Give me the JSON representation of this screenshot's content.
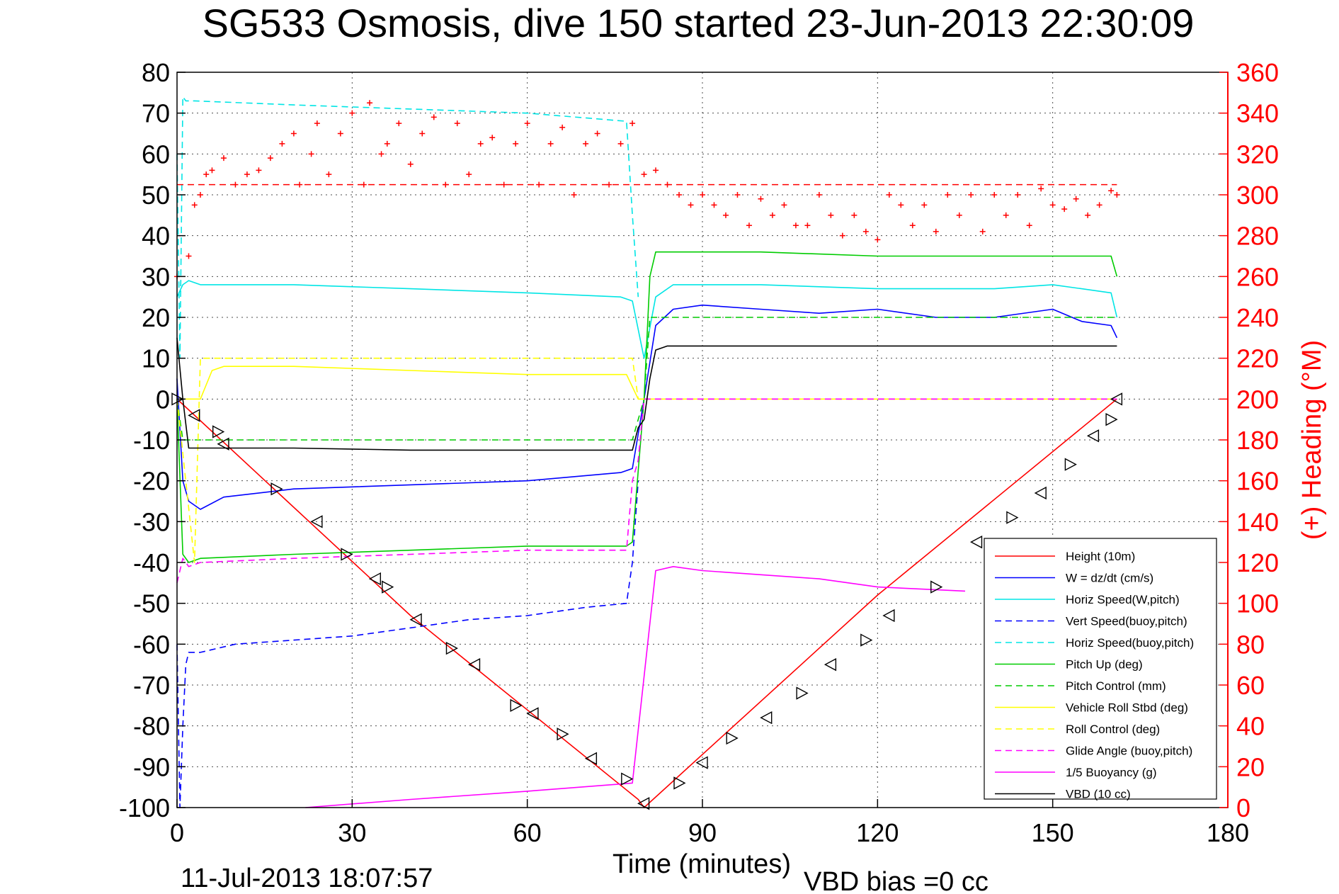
{
  "chart_data": {
    "type": "line",
    "title": "SG533 Osmosis, dive 150 started 23-Jun-2013 22:30:09",
    "xlabel": "Time (minutes)",
    "ylabel_right": "(+) Heading (°M)",
    "footer_date": "11-Jul-2013 18:07:57",
    "footer_note": "VBD bias =0 cc",
    "xlim": [
      0,
      180
    ],
    "ylim": [
      -100,
      80
    ],
    "ylim_right": [
      0,
      360
    ],
    "grid": true,
    "legend_position": "lower-right",
    "x_ticks": [
      "0",
      "30",
      "60",
      "90",
      "120",
      "150",
      "180"
    ],
    "y_ticks": [
      "80",
      "70",
      "60",
      "50",
      "40",
      "30",
      "20",
      "10",
      "0",
      "-10",
      "-20",
      "-30",
      "-40",
      "-50",
      "-60",
      "-70",
      "-80",
      "-90",
      "-100"
    ],
    "y_ticks_right": [
      "360",
      "340",
      "320",
      "300",
      "280",
      "260",
      "240",
      "220",
      "200",
      "180",
      "160",
      "140",
      "120",
      "100",
      "80",
      "60",
      "40",
      "20",
      "0"
    ],
    "series": [
      {
        "name": "Height (10m)",
        "color": "#ff0000",
        "style": "solid",
        "x": [
          0,
          40,
          79,
          80,
          120,
          161
        ],
        "y": [
          0,
          -53,
          -98,
          -100,
          -48,
          0
        ]
      },
      {
        "name": "W = dz/dt (cm/s)",
        "color": "#0000ff",
        "style": "solid",
        "x": [
          0,
          1,
          2,
          4,
          8,
          20,
          40,
          60,
          76,
          78,
          80,
          82,
          85,
          90,
          100,
          110,
          120,
          130,
          140,
          150,
          155,
          160,
          161
        ],
        "y": [
          5,
          -20,
          -25,
          -27,
          -24,
          -22,
          -21,
          -20,
          -18,
          -17,
          0,
          18,
          22,
          23,
          22,
          21,
          22,
          20,
          20,
          22,
          19,
          18,
          15
        ]
      },
      {
        "name": "Horiz Speed(W,pitch)",
        "color": "#00e5e5",
        "style": "solid",
        "x": [
          0,
          1,
          2,
          4,
          20,
          40,
          60,
          76,
          78,
          80,
          82,
          85,
          100,
          120,
          140,
          150,
          160,
          161
        ],
        "y": [
          25,
          28,
          29,
          28,
          28,
          27,
          26,
          25,
          24,
          10,
          25,
          28,
          28,
          27,
          27,
          28,
          26,
          20
        ]
      },
      {
        "name": "Vert Speed(buoy,pitch)",
        "color": "#0000ff",
        "style": "dashed",
        "x": [
          0,
          0.5,
          1,
          1.5,
          2,
          4,
          10,
          20,
          30,
          40,
          50,
          60,
          70,
          77,
          78,
          79
        ],
        "y": [
          -60,
          -100,
          -80,
          -65,
          -62,
          -62,
          -60,
          -59,
          -58,
          -56,
          -54,
          -53,
          -51,
          -50,
          -40,
          -20
        ]
      },
      {
        "name": "Horiz Speed(buoy,pitch)",
        "color": "#00e5e5",
        "style": "dashed",
        "x": [
          0,
          0.5,
          1,
          1.5,
          3,
          20,
          40,
          60,
          77,
          78,
          79
        ],
        "y": [
          60,
          10,
          74,
          73,
          73,
          72,
          71,
          70,
          68,
          45,
          25
        ]
      },
      {
        "name": "Pitch Up (deg)",
        "color": "#00cc00",
        "style": "solid",
        "x": [
          0,
          1,
          2,
          4,
          20,
          40,
          60,
          77,
          78,
          80,
          81,
          82,
          85,
          100,
          120,
          140,
          150,
          160,
          161
        ],
        "y": [
          0,
          -38,
          -40,
          -39,
          -38,
          -37,
          -36,
          -36,
          -35,
          0,
          30,
          36,
          36,
          36,
          35,
          35,
          35,
          35,
          30
        ]
      },
      {
        "name": "Pitch Control (mm)",
        "color": "#00cc00",
        "style": "dashed",
        "x": [
          0,
          1,
          2,
          78,
          79,
          80,
          81,
          161
        ],
        "y": [
          0,
          -10,
          -10,
          -10,
          -5,
          0,
          20,
          20
        ]
      },
      {
        "name": "Vehicle Roll Stbd (deg)",
        "color": "#ffff00",
        "style": "solid",
        "x": [
          0,
          2,
          4,
          6,
          8,
          20,
          40,
          60,
          77,
          79,
          81,
          85,
          100,
          120,
          140,
          161
        ],
        "y": [
          0,
          0,
          0,
          7,
          8,
          8,
          7,
          6,
          6,
          0,
          0,
          0,
          0,
          0,
          0,
          0
        ]
      },
      {
        "name": "Roll Control (deg)",
        "color": "#ffff00",
        "style": "dashed",
        "x": [
          0,
          3,
          4,
          78,
          79,
          80,
          161
        ],
        "y": [
          0,
          -40,
          10,
          10,
          0,
          0,
          0
        ]
      },
      {
        "name": "Glide Angle (buoy,pitch)",
        "color": "#ff00ff",
        "style": "dashed",
        "x": [
          0,
          1,
          2,
          4,
          20,
          40,
          60,
          77,
          78,
          79,
          80,
          81,
          161
        ],
        "y": [
          -45,
          -39,
          -41,
          -40,
          -39,
          -38,
          -37,
          -37,
          -20,
          -15,
          0,
          0,
          0
        ]
      },
      {
        "name": "1/5 Buoyancy (g)",
        "color": "#ff00ff",
        "style": "solid",
        "x": [
          22,
          40,
          60,
          78,
          82,
          85,
          90,
          100,
          110,
          120,
          135
        ],
        "y": [
          -100,
          -98,
          -96,
          -94,
          -42,
          -41,
          -42,
          -43,
          -44,
          -46,
          -47
        ]
      },
      {
        "name": "VBD (10 cc)",
        "color": "#000000",
        "style": "solid",
        "x": [
          0,
          1,
          2,
          20,
          40,
          60,
          78,
          79,
          80,
          81,
          82,
          83,
          84,
          85,
          100,
          120,
          140,
          161
        ],
        "y": [
          15,
          0,
          -12,
          -12,
          -12.5,
          -12.5,
          -12.5,
          -7,
          -5,
          5,
          12,
          12.5,
          13,
          13,
          13,
          13,
          13,
          13
        ]
      }
    ],
    "heading": {
      "name": "(+) Heading (°M)",
      "color": "#ff0000",
      "style": "markers-plus",
      "axis": "right",
      "mean": 305,
      "mean_line_x": [
        0,
        161
      ],
      "x": [
        0,
        2,
        3,
        4,
        5,
        6,
        8,
        10,
        12,
        14,
        16,
        18,
        20,
        21,
        23,
        24,
        26,
        28,
        30,
        32,
        33,
        35,
        36,
        38,
        40,
        42,
        44,
        46,
        48,
        50,
        52,
        54,
        56,
        58,
        60,
        62,
        64,
        66,
        68,
        70,
        72,
        74,
        76,
        78,
        80,
        82,
        84,
        86,
        88,
        90,
        92,
        94,
        96,
        98,
        100,
        102,
        104,
        106,
        108,
        110,
        112,
        114,
        116,
        118,
        120,
        122,
        124,
        126,
        128,
        130,
        132,
        134,
        136,
        138,
        140,
        142,
        144,
        146,
        148,
        150,
        152,
        154,
        156,
        158,
        160,
        161
      ],
      "y": [
        260,
        270,
        295,
        300,
        310,
        312,
        318,
        305,
        310,
        312,
        318,
        325,
        330,
        305,
        320,
        335,
        310,
        330,
        340,
        305,
        345,
        320,
        325,
        335,
        315,
        330,
        338,
        305,
        335,
        310,
        325,
        328,
        305,
        325,
        335,
        305,
        325,
        333,
        300,
        325,
        330,
        305,
        325,
        335,
        310,
        312,
        305,
        300,
        295,
        300,
        295,
        290,
        300,
        285,
        298,
        290,
        295,
        285,
        285,
        300,
        290,
        280,
        290,
        282,
        278,
        300,
        295,
        285,
        295,
        282,
        300,
        290,
        300,
        282,
        300,
        290,
        300,
        285,
        303,
        295,
        293,
        298,
        290,
        295,
        302,
        300
      ]
    },
    "depth_markers": {
      "x": [
        0,
        3,
        7,
        8,
        17,
        24,
        29,
        34,
        36,
        41,
        47,
        51,
        58,
        61,
        66,
        71,
        77,
        80,
        86,
        90,
        95,
        101,
        107,
        112,
        118,
        122,
        130,
        137,
        143,
        148,
        153,
        157,
        160,
        161
      ],
      "y": [
        0,
        -4,
        -8,
        -11,
        -22,
        -30,
        -38,
        -44,
        -46,
        -54,
        -61,
        -65,
        -75,
        -77,
        -82,
        -88,
        -93,
        -99,
        -94,
        -89,
        -83,
        -78,
        -72,
        -65,
        -59,
        -53,
        -46,
        -35,
        -29,
        -23,
        -16,
        -9,
        -5,
        0
      ]
    }
  }
}
